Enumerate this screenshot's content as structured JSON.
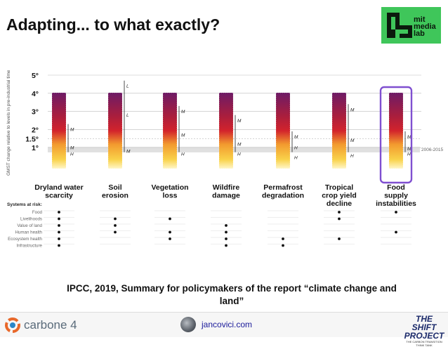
{
  "slide": {
    "title": "Adapting... to what exactly?",
    "caption_line1": "IPCC, 2019, Summary for policymakers of the report “climate change and",
    "caption_line2": "land”"
  },
  "logo": {
    "line1": "mit",
    "line2": "media",
    "line3": "lab"
  },
  "footer": {
    "carbone": "carbone 4",
    "site": "jancovici.com",
    "shift_title": "THE SHIFT PROJECT",
    "shift_tagline": "THE CARBON TRANSITION THINK TANK"
  },
  "chart_data": {
    "type": "risk-bars",
    "ylabel": "GMST change relative to levels in pre-industrial time (°C)",
    "ticks": [
      "5°",
      "4°",
      "3°",
      "2°",
      "1.5°",
      "1°"
    ],
    "tick_values": [
      5,
      4,
      3,
      2,
      1.5,
      1
    ],
    "band_label": "2006-2015",
    "colors": {
      "undetectable": "#ffffff",
      "moderate": "#f4c542",
      "high": "#c8202c",
      "very_high": "#7a1a6a",
      "highlight": "#7f4fd0"
    },
    "categories": [
      {
        "name": "Dryland water scarcity",
        "line1": "Dryland water",
        "line2": "scarcity",
        "line3": "",
        "confidence": [
          "M",
          "M",
          "H"
        ],
        "confidence_temps": [
          2.3,
          1.3,
          0.95
        ]
      },
      {
        "name": "Soil erosion",
        "line1": "Soil",
        "line2": "erosion",
        "line3": "",
        "confidence": [
          "L",
          "L",
          "M"
        ],
        "confidence_temps": [
          4.7,
          3.1,
          1.1
        ]
      },
      {
        "name": "Vegetation loss",
        "line1": "Vegetation",
        "line2": "loss",
        "line3": "",
        "confidence": [
          "M",
          "M",
          "H"
        ],
        "confidence_temps": [
          3.3,
          2.0,
          0.95
        ]
      },
      {
        "name": "Wildfire damage",
        "line1": "Wildfire",
        "line2": "damage",
        "line3": "",
        "confidence": [
          "M",
          "M",
          "H"
        ],
        "confidence_temps": [
          2.8,
          1.5,
          0.95
        ]
      },
      {
        "name": "Permafrost degradation",
        "line1": "Permafrost",
        "line2": "degradation",
        "line3": "",
        "confidence": [
          "M",
          "H",
          "H"
        ],
        "confidence_temps": [
          1.9,
          1.3,
          0.75
        ]
      },
      {
        "name": "Tropical crop yield decline",
        "line1": "Tropical",
        "line2": "crop yield",
        "line3": "decline",
        "confidence": [
          "M",
          "M",
          "H"
        ],
        "confidence_temps": [
          3.4,
          1.7,
          0.85
        ]
      },
      {
        "name": "Food supply instabilities",
        "line1": "Food",
        "line2": "supply",
        "line3": "instabilities",
        "confidence": [
          "M",
          "M",
          "H"
        ],
        "confidence_temps": [
          1.9,
          1.25,
          0.95
        ]
      }
    ],
    "systems_label": "Systems at risk:",
    "systems": [
      "Food",
      "Livelihoods",
      "Value of land",
      "Human health",
      "Ecosystem health",
      "Infrastructure"
    ],
    "risk_dots": [
      [
        1,
        0,
        0,
        0,
        0,
        1,
        1
      ],
      [
        1,
        1,
        1,
        0,
        0,
        1,
        0
      ],
      [
        1,
        1,
        0,
        1,
        0,
        0,
        0
      ],
      [
        1,
        1,
        1,
        1,
        0,
        0,
        1
      ],
      [
        1,
        0,
        1,
        1,
        1,
        1,
        0
      ],
      [
        1,
        0,
        0,
        1,
        1,
        0,
        0
      ]
    ]
  }
}
